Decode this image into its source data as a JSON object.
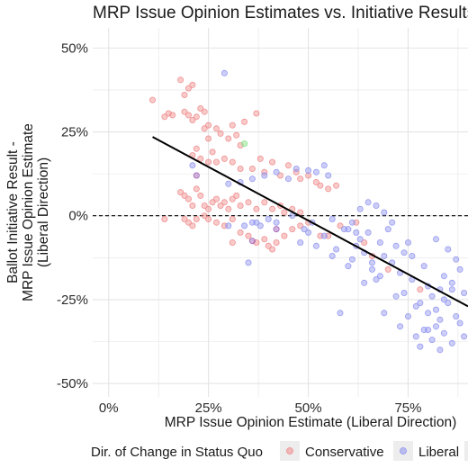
{
  "colors": {
    "conservative": "#f08a8a",
    "liberal": "#8f93ee",
    "other": "#7fe27f",
    "overlap": "#9a57b3",
    "grid": "#e4e4e4",
    "panel": "#ffffff",
    "trend": "#000000"
  },
  "chart_data": {
    "type": "scatter",
    "title": "MRP Issue Opinion Estimates vs. Initiative Results",
    "xlabel": "MRP Issue Opinion Estimate (Liberal Direction)",
    "ylabel_lines": [
      "Ballot Initiative Result -",
      "MRP Issue Opinion Estimate",
      "(Liberal Direction)"
    ],
    "xlim": [
      -0.04,
      0.9
    ],
    "ylim": [
      -0.54,
      0.56
    ],
    "x_ticks": [
      0,
      0.25,
      0.5,
      0.75
    ],
    "x_tick_labels": [
      "0%",
      "25%",
      "50%",
      "75%"
    ],
    "y_ticks": [
      0.5,
      0.25,
      0,
      -0.25,
      -0.5
    ],
    "y_tick_labels": [
      "50%",
      "25%",
      "0%",
      "-25%",
      "-50%"
    ],
    "hline": 0,
    "grid": true,
    "legend": {
      "title": "Dir. of Change in Status Quo",
      "placement": "bottom",
      "entries": [
        "Conservative",
        "Liberal"
      ]
    },
    "trend_line": {
      "x": [
        0.11,
        0.9
      ],
      "y": [
        0.235,
        -0.27
      ]
    },
    "series": [
      {
        "name": "Conservative",
        "color_key": "conservative",
        "points": [
          [
            0.11,
            0.345
          ],
          [
            0.14,
            0.295
          ],
          [
            0.15,
            0.305
          ],
          [
            0.16,
            0.3
          ],
          [
            0.18,
            0.405
          ],
          [
            0.19,
            0.36
          ],
          [
            0.2,
            0.38
          ],
          [
            0.21,
            0.39
          ],
          [
            0.19,
            0.31
          ],
          [
            0.2,
            0.3
          ],
          [
            0.21,
            0.285
          ],
          [
            0.22,
            0.295
          ],
          [
            0.23,
            0.32
          ],
          [
            0.24,
            0.31
          ],
          [
            0.24,
            0.26
          ],
          [
            0.25,
            0.27
          ],
          [
            0.25,
            0.23
          ],
          [
            0.27,
            0.26
          ],
          [
            0.28,
            0.245
          ],
          [
            0.3,
            0.23
          ],
          [
            0.31,
            0.27
          ],
          [
            0.32,
            0.24
          ],
          [
            0.33,
            0.21
          ],
          [
            0.34,
            0.28
          ],
          [
            0.37,
            0.305
          ],
          [
            0.21,
            0.18
          ],
          [
            0.22,
            0.2
          ],
          [
            0.23,
            0.17
          ],
          [
            0.25,
            0.16
          ],
          [
            0.26,
            0.19
          ],
          [
            0.27,
            0.16
          ],
          [
            0.29,
            0.17
          ],
          [
            0.31,
            0.16
          ],
          [
            0.33,
            0.14
          ],
          [
            0.36,
            0.14
          ],
          [
            0.38,
            0.17
          ],
          [
            0.39,
            0.13
          ],
          [
            0.41,
            0.16
          ],
          [
            0.43,
            0.12
          ],
          [
            0.45,
            0.15
          ],
          [
            0.47,
            0.13
          ],
          [
            0.48,
            0.11
          ],
          [
            0.5,
            0.12
          ],
          [
            0.52,
            0.1
          ],
          [
            0.53,
            0.09
          ],
          [
            0.55,
            0.08
          ],
          [
            0.57,
            0.09
          ],
          [
            0.18,
            0.07
          ],
          [
            0.19,
            0.06
          ],
          [
            0.2,
            0.05
          ],
          [
            0.21,
            0.03
          ],
          [
            0.22,
            0.08
          ],
          [
            0.23,
            0.06
          ],
          [
            0.24,
            0.03
          ],
          [
            0.25,
            0.02
          ],
          [
            0.26,
            0.04
          ],
          [
            0.27,
            0.05
          ],
          [
            0.28,
            0.03
          ],
          [
            0.29,
            0.04
          ],
          [
            0.3,
            0.02
          ],
          [
            0.31,
            0.05
          ],
          [
            0.32,
            0.06
          ],
          [
            0.33,
            0.03
          ],
          [
            0.35,
            0.04
          ],
          [
            0.37,
            0.02
          ],
          [
            0.39,
            0.04
          ],
          [
            0.41,
            0.02
          ],
          [
            0.43,
            0.03
          ],
          [
            0.44,
            0.01
          ],
          [
            0.46,
            0.02
          ],
          [
            0.48,
            0.01
          ],
          [
            0.19,
            -0.01
          ],
          [
            0.2,
            -0.02
          ],
          [
            0.21,
            -0.03
          ],
          [
            0.22,
            -0.01
          ],
          [
            0.24,
            0.0
          ],
          [
            0.25,
            -0.01
          ],
          [
            0.27,
            -0.02
          ],
          [
            0.29,
            -0.03
          ],
          [
            0.31,
            -0.01
          ],
          [
            0.33,
            -0.05
          ],
          [
            0.35,
            -0.06
          ],
          [
            0.37,
            -0.08
          ],
          [
            0.39,
            -0.07
          ],
          [
            0.4,
            -0.09
          ],
          [
            0.42,
            -0.08
          ],
          [
            0.44,
            -0.06
          ],
          [
            0.46,
            -0.04
          ],
          [
            0.48,
            -0.03
          ],
          [
            0.5,
            -0.02
          ],
          [
            0.53,
            -0.06
          ],
          [
            0.31,
            -0.08
          ],
          [
            0.14,
            -0.01
          ],
          [
            0.41,
            -0.1
          ],
          [
            0.55,
            -0.06
          ],
          [
            0.58,
            -0.03
          ],
          [
            0.62,
            -0.02
          ],
          [
            0.64,
            -0.08
          ],
          [
            0.66,
            -0.12
          ],
          [
            0.7,
            -0.16
          ],
          [
            0.78,
            -0.22
          ]
        ]
      },
      {
        "name": "Liberal",
        "color_key": "liberal",
        "points": [
          [
            0.29,
            0.425
          ],
          [
            0.21,
            0.15
          ],
          [
            0.3,
            0.095
          ],
          [
            0.33,
            0.1
          ],
          [
            0.36,
            0.11
          ],
          [
            0.39,
            0.12
          ],
          [
            0.42,
            0.13
          ],
          [
            0.45,
            0.11
          ],
          [
            0.47,
            0.14
          ],
          [
            0.5,
            0.135
          ],
          [
            0.52,
            0.13
          ],
          [
            0.54,
            0.15
          ],
          [
            0.55,
            0.12
          ],
          [
            0.3,
            -0.03
          ],
          [
            0.34,
            -0.03
          ],
          [
            0.36,
            -0.02
          ],
          [
            0.38,
            -0.03
          ],
          [
            0.4,
            -0.01
          ],
          [
            0.42,
            -0.02
          ],
          [
            0.46,
            0.0
          ],
          [
            0.49,
            -0.04
          ],
          [
            0.51,
            -0.02
          ],
          [
            0.56,
            -0.01
          ],
          [
            0.59,
            -0.04
          ],
          [
            0.61,
            -0.02
          ],
          [
            0.63,
            0.02
          ],
          [
            0.65,
            0.04
          ],
          [
            0.67,
            0.03
          ],
          [
            0.69,
            0.01
          ],
          [
            0.71,
            -0.02
          ],
          [
            0.37,
            -0.02
          ],
          [
            0.35,
            -0.14
          ],
          [
            0.48,
            -0.08
          ],
          [
            0.5,
            -0.05
          ],
          [
            0.52,
            -0.09
          ],
          [
            0.54,
            -0.06
          ],
          [
            0.56,
            -0.12
          ],
          [
            0.58,
            -0.29
          ],
          [
            0.6,
            -0.15
          ],
          [
            0.62,
            -0.09
          ],
          [
            0.63,
            -0.07
          ],
          [
            0.64,
            -0.11
          ],
          [
            0.65,
            -0.05
          ],
          [
            0.66,
            -0.16
          ],
          [
            0.67,
            -0.19
          ],
          [
            0.68,
            -0.08
          ],
          [
            0.69,
            -0.12
          ],
          [
            0.7,
            -0.04
          ],
          [
            0.71,
            -0.14
          ],
          [
            0.72,
            -0.09
          ],
          [
            0.73,
            -0.17
          ],
          [
            0.74,
            -0.23
          ],
          [
            0.75,
            -0.08
          ],
          [
            0.75,
            -0.3
          ],
          [
            0.76,
            -0.12
          ],
          [
            0.77,
            -0.27
          ],
          [
            0.77,
            -0.36
          ],
          [
            0.78,
            -0.39
          ],
          [
            0.79,
            -0.15
          ],
          [
            0.79,
            -0.34
          ],
          [
            0.8,
            -0.21
          ],
          [
            0.8,
            -0.29
          ],
          [
            0.81,
            -0.24
          ],
          [
            0.81,
            -0.37
          ],
          [
            0.82,
            -0.07
          ],
          [
            0.82,
            -0.33
          ],
          [
            0.83,
            -0.22
          ],
          [
            0.83,
            -0.31
          ],
          [
            0.84,
            -0.18
          ],
          [
            0.84,
            -0.35
          ],
          [
            0.85,
            -0.1
          ],
          [
            0.85,
            -0.26
          ],
          [
            0.86,
            -0.38
          ],
          [
            0.86,
            -0.2
          ],
          [
            0.87,
            -0.13
          ],
          [
            0.87,
            -0.3
          ],
          [
            0.88,
            -0.32
          ],
          [
            0.88,
            -0.16
          ],
          [
            0.89,
            -0.23
          ],
          [
            0.89,
            -0.36
          ],
          [
            0.6,
            -0.04
          ],
          [
            0.62,
            -0.05
          ],
          [
            0.64,
            -0.2
          ],
          [
            0.66,
            -0.14
          ],
          [
            0.68,
            -0.18
          ],
          [
            0.72,
            -0.24
          ],
          [
            0.74,
            -0.11
          ],
          [
            0.76,
            -0.19
          ],
          [
            0.78,
            -0.26
          ],
          [
            0.8,
            -0.34
          ],
          [
            0.82,
            -0.28
          ],
          [
            0.84,
            -0.25
          ],
          [
            0.86,
            -0.22
          ],
          [
            0.57,
            -0.1
          ],
          [
            0.61,
            -0.13
          ],
          [
            0.69,
            -0.29
          ],
          [
            0.73,
            -0.33
          ],
          [
            0.83,
            -0.4
          ]
        ]
      },
      {
        "name": "",
        "color_key": "overlap",
        "points": [
          [
            0.22,
            0.12
          ],
          [
            0.36,
            -0.075
          ],
          [
            0.42,
            -0.04
          ]
        ]
      },
      {
        "name": "",
        "color_key": "other",
        "points": [
          [
            0.34,
            0.215
          ]
        ]
      }
    ]
  }
}
